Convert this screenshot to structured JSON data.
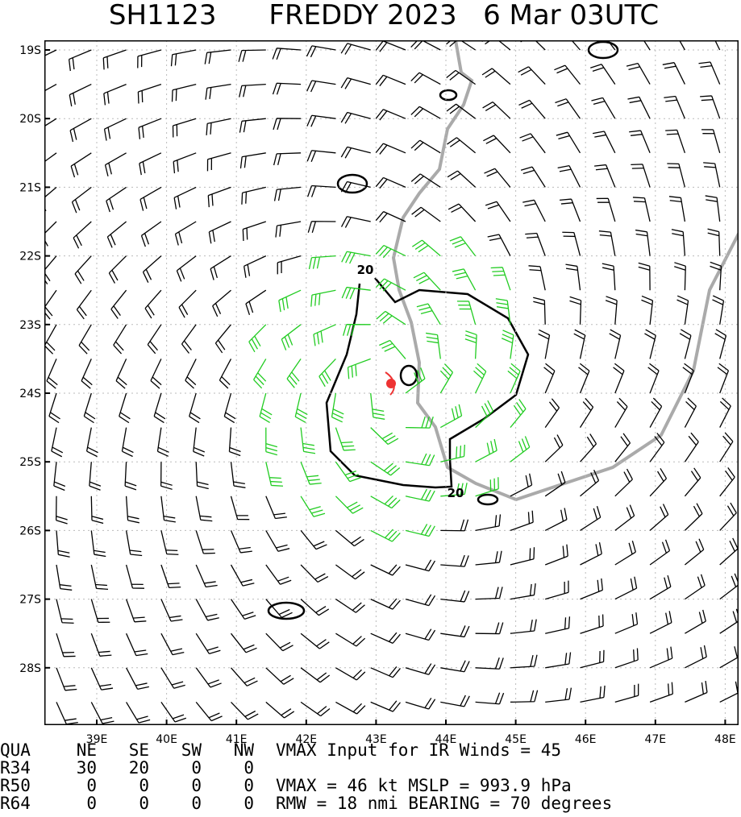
{
  "header": {
    "title": "SH1123      FREDDY 2023   6 Mar 03UTC"
  },
  "map": {
    "lat_labels": [
      "19S",
      "20S",
      "21S",
      "22S",
      "23S",
      "24S",
      "25S",
      "26S",
      "27S",
      "28S"
    ],
    "lon_labels": [
      "39E",
      "40E",
      "41E",
      "42E",
      "43E",
      "44E",
      "45E",
      "46E",
      "47E",
      "48E"
    ],
    "contour_labels": [
      "20",
      "20"
    ]
  },
  "table": {
    "header": [
      "QUA",
      "NE",
      "SE",
      "SW",
      "NW"
    ],
    "rows": [
      [
        "R34",
        "30",
        "20",
        "0",
        "0"
      ],
      [
        "R50",
        "0",
        "0",
        "0",
        "0"
      ],
      [
        "R64",
        "0",
        "0",
        "0",
        "0"
      ]
    ]
  },
  "info": [
    "VMAX Input for IR Winds =   45",
    "VMAX =   46 kt MSLP =  993.9 hPa",
    "RMW  =  18 nmi BEARING =   70 degrees"
  ]
}
